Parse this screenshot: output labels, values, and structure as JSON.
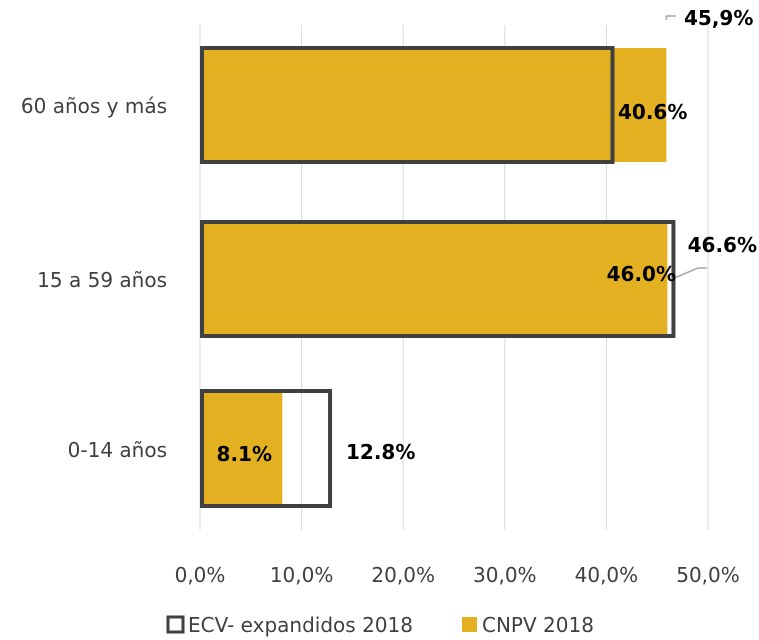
{
  "chart_data": {
    "type": "bar",
    "orientation": "horizontal",
    "categories": [
      "60 años y  más",
      "15 a 59 años",
      "0-14 años"
    ],
    "series": [
      {
        "name": "ECV- expandidos 2018",
        "values": [
          40.6,
          46.6,
          12.8
        ],
        "labels": [
          "40.6%",
          "46.6%",
          "12.8%"
        ],
        "color": "#404040",
        "style": "outline"
      },
      {
        "name": "CNPV 2018",
        "values": [
          45.9,
          46.0,
          8.1
        ],
        "labels": [
          "45,9%",
          "46.0%",
          "8.1%"
        ],
        "color": "#E3B022",
        "style": "filled"
      }
    ],
    "x_ticks": [
      "0,0%",
      "10,0%",
      "20,0%",
      "30,0%",
      "40,0%",
      "50,0%"
    ],
    "xlim": [
      0,
      50
    ],
    "grid": "vertical",
    "legend_position": "bottom"
  }
}
